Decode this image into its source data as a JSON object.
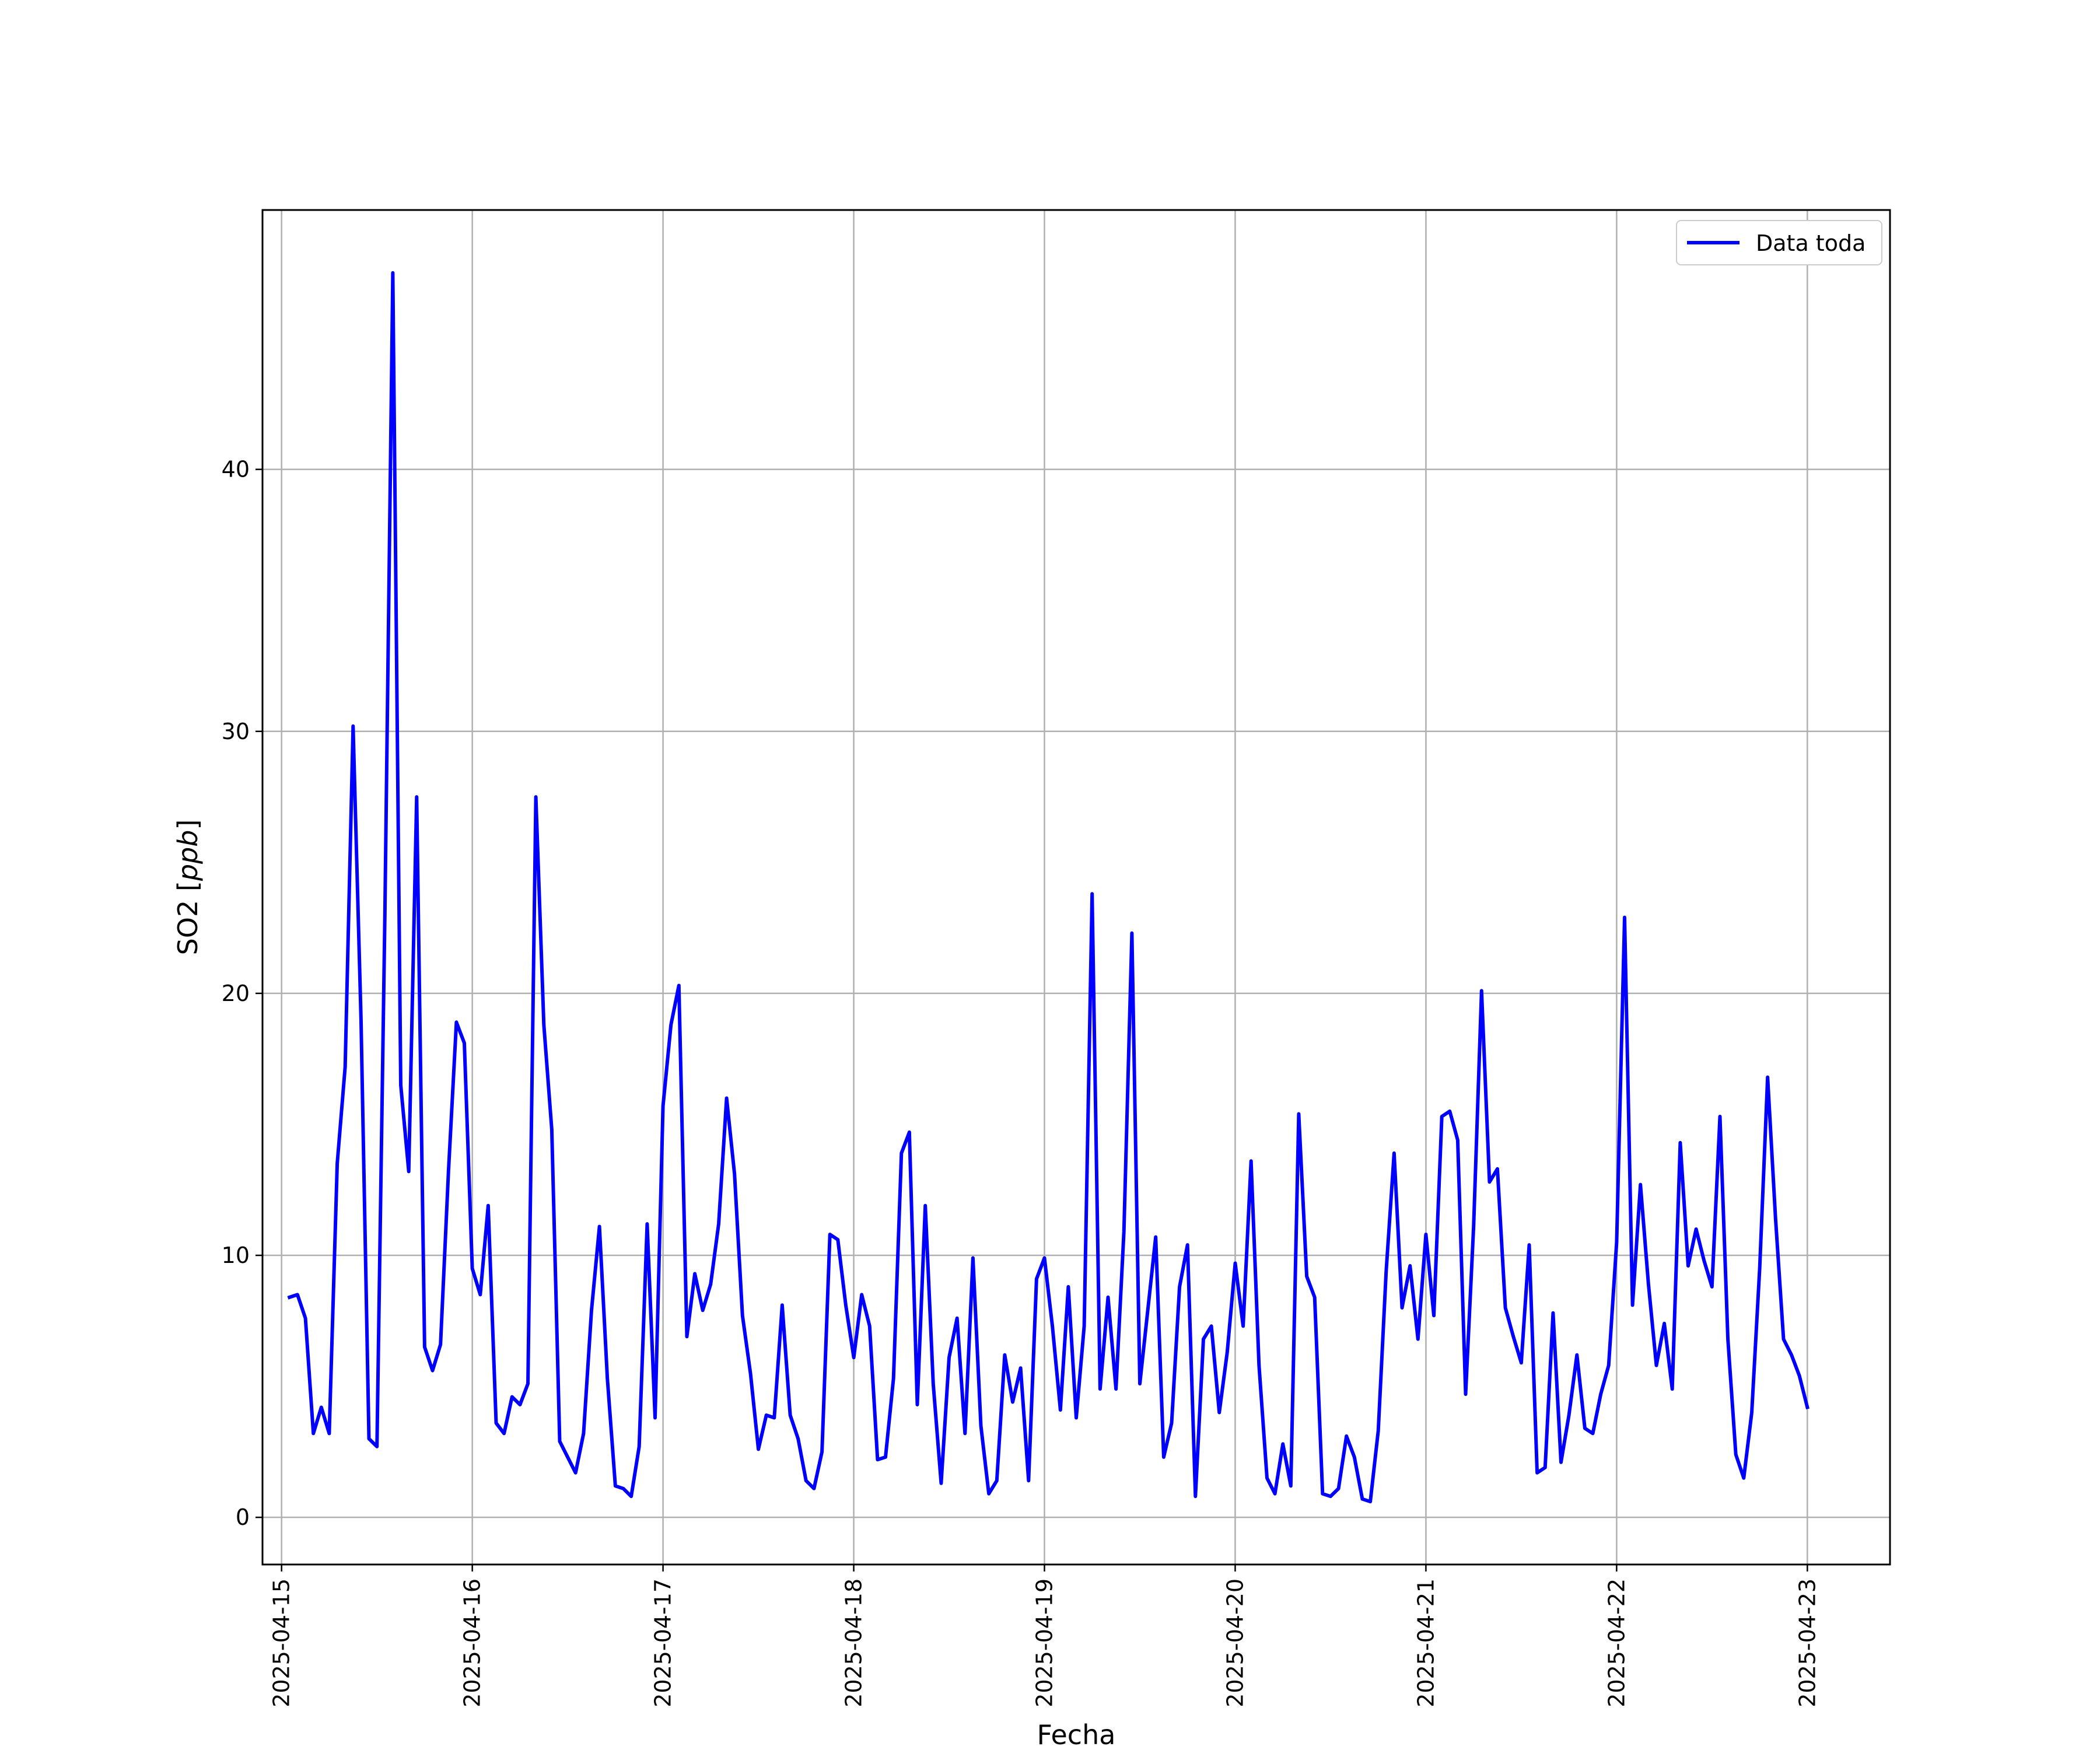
{
  "chart_data": {
    "type": "line",
    "title": "",
    "xlabel": "Fecha",
    "ylabel": "SO2 [ppb]",
    "ylabel_parts": {
      "text": "SO2 [",
      "unit": "ppb",
      "close": "]"
    },
    "xlim": [
      "2025-04-14T21:36",
      "2025-04-23T10:24"
    ],
    "ylim": [
      -1.8,
      49.9
    ],
    "x_ticks": [
      "2025-04-15",
      "2025-04-16",
      "2025-04-17",
      "2025-04-18",
      "2025-04-19",
      "2025-04-20",
      "2025-04-21",
      "2025-04-22",
      "2025-04-23"
    ],
    "y_ticks": [
      0,
      10,
      20,
      30,
      40
    ],
    "grid": true,
    "legend_position": "top-right",
    "series": [
      {
        "name": "Data toda",
        "color": "#0000ff",
        "x": [
          "2025-04-15T01:00",
          "2025-04-15T02:00",
          "2025-04-15T03:00",
          "2025-04-15T04:00",
          "2025-04-15T05:00",
          "2025-04-15T06:00",
          "2025-04-15T07:00",
          "2025-04-15T08:00",
          "2025-04-15T09:00",
          "2025-04-15T10:00",
          "2025-04-15T11:00",
          "2025-04-15T12:00",
          "2025-04-15T13:00",
          "2025-04-15T14:00",
          "2025-04-15T15:00",
          "2025-04-15T16:00",
          "2025-04-15T17:00",
          "2025-04-15T18:00",
          "2025-04-15T19:00",
          "2025-04-15T20:00",
          "2025-04-15T21:00",
          "2025-04-15T22:00",
          "2025-04-15T23:00",
          "2025-04-16T00:00",
          "2025-04-16T01:00",
          "2025-04-16T02:00",
          "2025-04-16T03:00",
          "2025-04-16T04:00",
          "2025-04-16T05:00",
          "2025-04-16T06:00",
          "2025-04-16T07:00",
          "2025-04-16T08:00",
          "2025-04-16T09:00",
          "2025-04-16T10:00",
          "2025-04-16T11:00",
          "2025-04-16T12:00",
          "2025-04-16T13:00",
          "2025-04-16T14:00",
          "2025-04-16T15:00",
          "2025-04-16T16:00",
          "2025-04-16T17:00",
          "2025-04-16T18:00",
          "2025-04-16T19:00",
          "2025-04-16T20:00",
          "2025-04-16T21:00",
          "2025-04-16T22:00",
          "2025-04-16T23:00",
          "2025-04-17T00:00",
          "2025-04-17T01:00",
          "2025-04-17T02:00",
          "2025-04-17T03:00",
          "2025-04-17T04:00",
          "2025-04-17T05:00",
          "2025-04-17T06:00",
          "2025-04-17T07:00",
          "2025-04-17T08:00",
          "2025-04-17T09:00",
          "2025-04-17T10:00",
          "2025-04-17T11:00",
          "2025-04-17T12:00",
          "2025-04-17T13:00",
          "2025-04-17T14:00",
          "2025-04-17T15:00",
          "2025-04-17T16:00",
          "2025-04-17T17:00",
          "2025-04-17T18:00",
          "2025-04-17T19:00",
          "2025-04-17T20:00",
          "2025-04-17T21:00",
          "2025-04-17T22:00",
          "2025-04-17T23:00",
          "2025-04-18T00:00",
          "2025-04-18T01:00",
          "2025-04-18T02:00",
          "2025-04-18T03:00",
          "2025-04-18T04:00",
          "2025-04-18T05:00",
          "2025-04-18T06:00",
          "2025-04-18T07:00",
          "2025-04-18T08:00",
          "2025-04-18T09:00",
          "2025-04-18T10:00",
          "2025-04-18T11:00",
          "2025-04-18T12:00",
          "2025-04-18T13:00",
          "2025-04-18T14:00",
          "2025-04-18T15:00",
          "2025-04-18T16:00",
          "2025-04-18T17:00",
          "2025-04-18T18:00",
          "2025-04-18T19:00",
          "2025-04-18T20:00",
          "2025-04-18T21:00",
          "2025-04-18T22:00",
          "2025-04-18T23:00",
          "2025-04-19T00:00",
          "2025-04-19T01:00",
          "2025-04-19T02:00",
          "2025-04-19T03:00",
          "2025-04-19T04:00",
          "2025-04-19T05:00",
          "2025-04-19T06:00",
          "2025-04-19T07:00",
          "2025-04-19T08:00",
          "2025-04-19T09:00",
          "2025-04-19T10:00",
          "2025-04-19T11:00",
          "2025-04-19T12:00",
          "2025-04-19T13:00",
          "2025-04-19T14:00",
          "2025-04-19T15:00",
          "2025-04-19T16:00",
          "2025-04-19T17:00",
          "2025-04-19T18:00",
          "2025-04-19T19:00",
          "2025-04-19T20:00",
          "2025-04-19T21:00",
          "2025-04-19T22:00",
          "2025-04-19T23:00",
          "2025-04-20T00:00",
          "2025-04-20T01:00",
          "2025-04-20T02:00",
          "2025-04-20T03:00",
          "2025-04-20T04:00",
          "2025-04-20T05:00",
          "2025-04-20T06:00",
          "2025-04-20T07:00",
          "2025-04-20T08:00",
          "2025-04-20T09:00",
          "2025-04-20T10:00",
          "2025-04-20T11:00",
          "2025-04-20T12:00",
          "2025-04-20T13:00",
          "2025-04-20T14:00",
          "2025-04-20T15:00",
          "2025-04-20T16:00",
          "2025-04-20T17:00",
          "2025-04-20T18:00",
          "2025-04-20T19:00",
          "2025-04-20T20:00",
          "2025-04-20T21:00",
          "2025-04-20T22:00",
          "2025-04-20T23:00",
          "2025-04-21T00:00",
          "2025-04-21T01:00",
          "2025-04-21T02:00",
          "2025-04-21T03:00",
          "2025-04-21T04:00",
          "2025-04-21T05:00",
          "2025-04-21T06:00",
          "2025-04-21T07:00",
          "2025-04-21T08:00",
          "2025-04-21T09:00",
          "2025-04-21T10:00",
          "2025-04-21T11:00",
          "2025-04-21T12:00",
          "2025-04-21T13:00",
          "2025-04-21T14:00",
          "2025-04-21T15:00",
          "2025-04-21T16:00",
          "2025-04-21T17:00",
          "2025-04-21T18:00",
          "2025-04-21T19:00",
          "2025-04-21T20:00",
          "2025-04-21T21:00",
          "2025-04-21T22:00",
          "2025-04-21T23:00",
          "2025-04-22T00:00",
          "2025-04-22T01:00",
          "2025-04-22T02:00",
          "2025-04-22T03:00",
          "2025-04-22T04:00",
          "2025-04-22T05:00",
          "2025-04-22T06:00",
          "2025-04-22T07:00",
          "2025-04-22T08:00",
          "2025-04-22T09:00",
          "2025-04-22T10:00",
          "2025-04-22T11:00",
          "2025-04-22T12:00",
          "2025-04-22T13:00",
          "2025-04-22T14:00",
          "2025-04-22T15:00",
          "2025-04-22T16:00",
          "2025-04-22T17:00",
          "2025-04-22T18:00",
          "2025-04-22T19:00",
          "2025-04-22T20:00",
          "2025-04-22T21:00",
          "2025-04-22T22:00",
          "2025-04-22T23:00",
          "2025-04-23T00:00"
        ],
        "y": [
          8.4,
          8.5,
          7.6,
          3.2,
          4.2,
          3.2,
          13.5,
          17.2,
          30.2,
          19.0,
          3.0,
          2.7,
          23.0,
          47.5,
          16.5,
          13.2,
          27.5,
          6.5,
          5.6,
          6.6,
          13.2,
          18.9,
          18.1,
          9.5,
          8.5,
          11.9,
          3.6,
          3.2,
          4.6,
          4.3,
          5.1,
          27.5,
          18.8,
          14.8,
          2.9,
          2.3,
          1.7,
          3.2,
          7.9,
          11.1,
          5.3,
          1.2,
          1.1,
          0.8,
          2.7,
          11.2,
          3.8,
          15.7,
          18.8,
          20.3,
          6.9,
          9.3,
          7.9,
          8.9,
          11.2,
          16.0,
          13.1,
          7.7,
          5.5,
          2.6,
          3.9,
          3.8,
          8.1,
          3.9,
          3.0,
          1.4,
          1.1,
          2.5,
          10.8,
          10.6,
          8.1,
          6.1,
          8.5,
          7.3,
          2.2,
          2.3,
          5.3,
          13.9,
          14.7,
          4.3,
          11.9,
          5.1,
          1.3,
          6.1,
          7.6,
          3.2,
          9.9,
          3.5,
          0.9,
          1.4,
          6.2,
          4.4,
          5.7,
          1.4,
          9.1,
          9.9,
          7.3,
          4.1,
          8.8,
          3.8,
          7.3,
          23.8,
          4.9,
          8.4,
          4.9,
          10.9,
          22.3,
          5.1,
          7.9,
          10.7,
          2.3,
          3.6,
          8.8,
          10.4,
          0.8,
          6.8,
          7.3,
          4.0,
          6.3,
          9.7,
          7.3,
          13.6,
          5.8,
          1.5,
          0.9,
          2.8,
          1.2,
          15.4,
          9.2,
          8.4,
          0.9,
          0.8,
          1.1,
          3.1,
          2.3,
          0.7,
          0.6,
          3.3,
          9.4,
          13.9,
          8.0,
          9.6,
          6.8,
          10.8,
          7.7,
          15.3,
          15.5,
          14.4,
          4.7,
          11.1,
          20.1,
          12.8,
          13.3,
          8.0,
          6.9,
          5.9,
          10.4,
          1.7,
          1.9,
          7.8,
          2.1,
          3.9,
          6.2,
          3.4,
          3.2,
          4.7,
          5.8,
          10.5,
          22.9,
          8.1,
          12.7,
          8.9,
          5.8,
          7.4,
          4.9,
          14.3,
          9.6,
          11.0,
          9.8,
          8.8,
          15.3,
          6.8,
          2.4,
          1.5,
          4.0,
          9.5,
          16.8,
          11.4,
          6.8,
          6.2,
          5.4,
          4.2
        ]
      }
    ]
  }
}
